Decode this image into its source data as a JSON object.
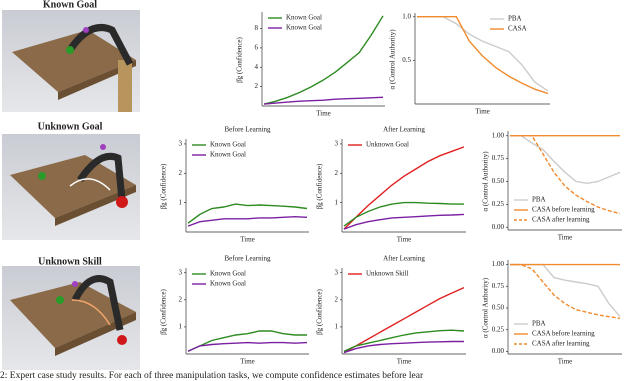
{
  "scenes": [
    "Known Goal",
    "Unknown Goal",
    "Unknown Skill"
  ],
  "caption": "2: Expert case study results. For each of three manipulation tasks, we compute confidence estimates before lear",
  "chart_data": [
    {
      "type": "line",
      "ylabel": "β̂g (Confidence)",
      "xlabel": "Time",
      "ylim": [
        0,
        9.5
      ],
      "yticks": [
        2,
        4,
        6,
        8
      ],
      "legend": "upper left",
      "series": [
        {
          "name": "Known Goal",
          "color": "#2e8b22",
          "values": [
            0.2,
            0.5,
            0.9,
            1.4,
            2.0,
            2.7,
            3.5,
            4.5,
            5.5,
            7.3,
            9.3
          ]
        },
        {
          "name": "Known Goal",
          "color": "#7b1fa2",
          "values": [
            0.2,
            0.3,
            0.4,
            0.5,
            0.55,
            0.6,
            0.7,
            0.75,
            0.8,
            0.85,
            0.9
          ]
        }
      ]
    },
    {
      "type": "line",
      "ylabel": "α (Control Authority)",
      "xlabel": "Time",
      "ylim": [
        0,
        1.02
      ],
      "yticks": [
        {
          "value": 0.5,
          "label": "0.5"
        },
        {
          "value": 1,
          "label": "1.0"
        }
      ],
      "legend": "upper right",
      "series": [
        {
          "name": "PBA",
          "color": "#cccccc",
          "values": [
            1,
            1,
            1,
            0.92,
            0.8,
            0.72,
            0.66,
            0.6,
            0.45,
            0.25,
            0.15
          ]
        },
        {
          "name": "CASA",
          "color": "#f28a2e",
          "values": [
            1,
            1,
            1,
            1,
            0.72,
            0.55,
            0.42,
            0.32,
            0.24,
            0.17,
            0.12
          ]
        }
      ]
    },
    {
      "type": "line",
      "title": "Before Learning",
      "ylabel": "β̂g (Confidence)",
      "xlabel": "Time",
      "ylim": [
        0,
        3.1
      ],
      "yticks": [
        1,
        2,
        3
      ],
      "legend": "upper left",
      "series": [
        {
          "name": "Known Goal",
          "color": "#2e8b22",
          "values": [
            0.3,
            0.6,
            0.8,
            0.85,
            0.95,
            0.9,
            0.92,
            0.9,
            0.88,
            0.85,
            0.8
          ]
        },
        {
          "name": "Known Goal",
          "color": "#7b1fa2",
          "values": [
            0.2,
            0.35,
            0.4,
            0.45,
            0.45,
            0.45,
            0.48,
            0.48,
            0.5,
            0.52,
            0.5
          ]
        }
      ]
    },
    {
      "type": "line",
      "title": "After Learning",
      "ylabel": "β̂g (Confidence)",
      "xlabel": "Time",
      "ylim": [
        0,
        3.1
      ],
      "yticks": [
        1,
        2,
        3
      ],
      "legend": "upper left",
      "series": [
        {
          "name": "Unknown Goal",
          "color": "#e02020",
          "values": [
            0.1,
            0.5,
            0.9,
            1.25,
            1.6,
            1.9,
            2.15,
            2.4,
            2.6,
            2.75,
            2.9
          ]
        },
        {
          "color": "#2e8b22",
          "values": [
            0.2,
            0.5,
            0.7,
            0.85,
            0.95,
            1.0,
            1.0,
            0.98,
            0.97,
            0.95,
            0.95
          ]
        },
        {
          "color": "#7b1fa2",
          "values": [
            0.1,
            0.25,
            0.35,
            0.42,
            0.48,
            0.5,
            0.52,
            0.55,
            0.57,
            0.58,
            0.6
          ]
        }
      ]
    },
    {
      "type": "line",
      "ylabel": "α (Control Authority)",
      "xlabel": "Time",
      "ylim": [
        -0.03,
        1.03
      ],
      "yticks": [
        {
          "value": 0,
          "label": "0.00"
        },
        {
          "value": 0.25,
          "label": "0.25"
        },
        {
          "value": 0.5,
          "label": "0.50"
        },
        {
          "value": 0.75,
          "label": "0.75"
        },
        {
          "value": 1,
          "label": "1.00"
        }
      ],
      "legend": "lower left",
      "series": [
        {
          "name": "PBA",
          "color": "#cccccc",
          "values": [
            1,
            1,
            0.92,
            0.85,
            0.72,
            0.6,
            0.5,
            0.48,
            0.5,
            0.55,
            0.6
          ]
        },
        {
          "name": "CASA before learning",
          "color": "#f28a2e",
          "values": [
            1,
            1,
            1,
            1,
            1,
            1,
            1,
            1,
            1,
            1,
            1
          ]
        },
        {
          "name": "CASA after learning",
          "color": "#f28a2e",
          "dashed": true,
          "values": [
            1,
            1,
            1,
            0.8,
            0.6,
            0.45,
            0.35,
            0.28,
            0.22,
            0.18,
            0.15
          ]
        }
      ]
    },
    {
      "type": "line",
      "title": "Before Learning",
      "ylabel": "β̂g (Confidence)",
      "xlabel": "Time",
      "ylim": [
        0,
        3.1
      ],
      "yticks": [
        1,
        2,
        3
      ],
      "legend": "upper left",
      "series": [
        {
          "name": "Known Goal",
          "color": "#2e8b22",
          "values": [
            0.1,
            0.3,
            0.5,
            0.6,
            0.7,
            0.75,
            0.85,
            0.85,
            0.75,
            0.7,
            0.7
          ]
        },
        {
          "name": "Known Goal",
          "color": "#7b1fa2",
          "values": [
            0.1,
            0.3,
            0.35,
            0.38,
            0.4,
            0.42,
            0.4,
            0.42,
            0.42,
            0.4,
            0.42
          ]
        }
      ]
    },
    {
      "type": "line",
      "title": "After Learning",
      "ylabel": "β̂g (Confidence)",
      "xlabel": "Time",
      "ylim": [
        0,
        3.1
      ],
      "yticks": [
        1,
        2,
        3
      ],
      "legend": "upper left",
      "series": [
        {
          "name": "Unknown Skill",
          "color": "#e02020",
          "values": [
            0.05,
            0.3,
            0.55,
            0.8,
            1.05,
            1.3,
            1.55,
            1.8,
            2.05,
            2.25,
            2.45
          ]
        },
        {
          "color": "#2e8b22",
          "values": [
            0.1,
            0.3,
            0.4,
            0.5,
            0.6,
            0.7,
            0.78,
            0.82,
            0.86,
            0.88,
            0.85
          ]
        },
        {
          "color": "#7b1fa2",
          "values": [
            0.05,
            0.2,
            0.3,
            0.35,
            0.38,
            0.4,
            0.42,
            0.44,
            0.45,
            0.46,
            0.46
          ]
        }
      ]
    },
    {
      "type": "line",
      "ylabel": "α (Control Authority)",
      "xlabel": "Time",
      "ylim": [
        -0.03,
        1.03
      ],
      "yticks": [
        {
          "value": 0,
          "label": "0.00"
        },
        {
          "value": 0.25,
          "label": "0.25"
        },
        {
          "value": 0.5,
          "label": "0.50"
        },
        {
          "value": 0.75,
          "label": "0.75"
        },
        {
          "value": 1,
          "label": "1.00"
        }
      ],
      "legend": "lower left",
      "series": [
        {
          "name": "PBA",
          "color": "#cccccc",
          "values": [
            1,
            1,
            1,
            1,
            0.85,
            0.82,
            0.8,
            0.78,
            0.75,
            0.55,
            0.4
          ]
        },
        {
          "name": "CASA before learning",
          "color": "#f28a2e",
          "values": [
            1,
            1,
            1,
            1,
            1,
            1,
            1,
            1,
            1,
            1,
            1
          ]
        },
        {
          "name": "CASA after learning",
          "color": "#f28a2e",
          "dashed": true,
          "values": [
            1,
            1,
            0.95,
            0.8,
            0.65,
            0.55,
            0.48,
            0.45,
            0.42,
            0.4,
            0.38
          ]
        }
      ]
    }
  ]
}
